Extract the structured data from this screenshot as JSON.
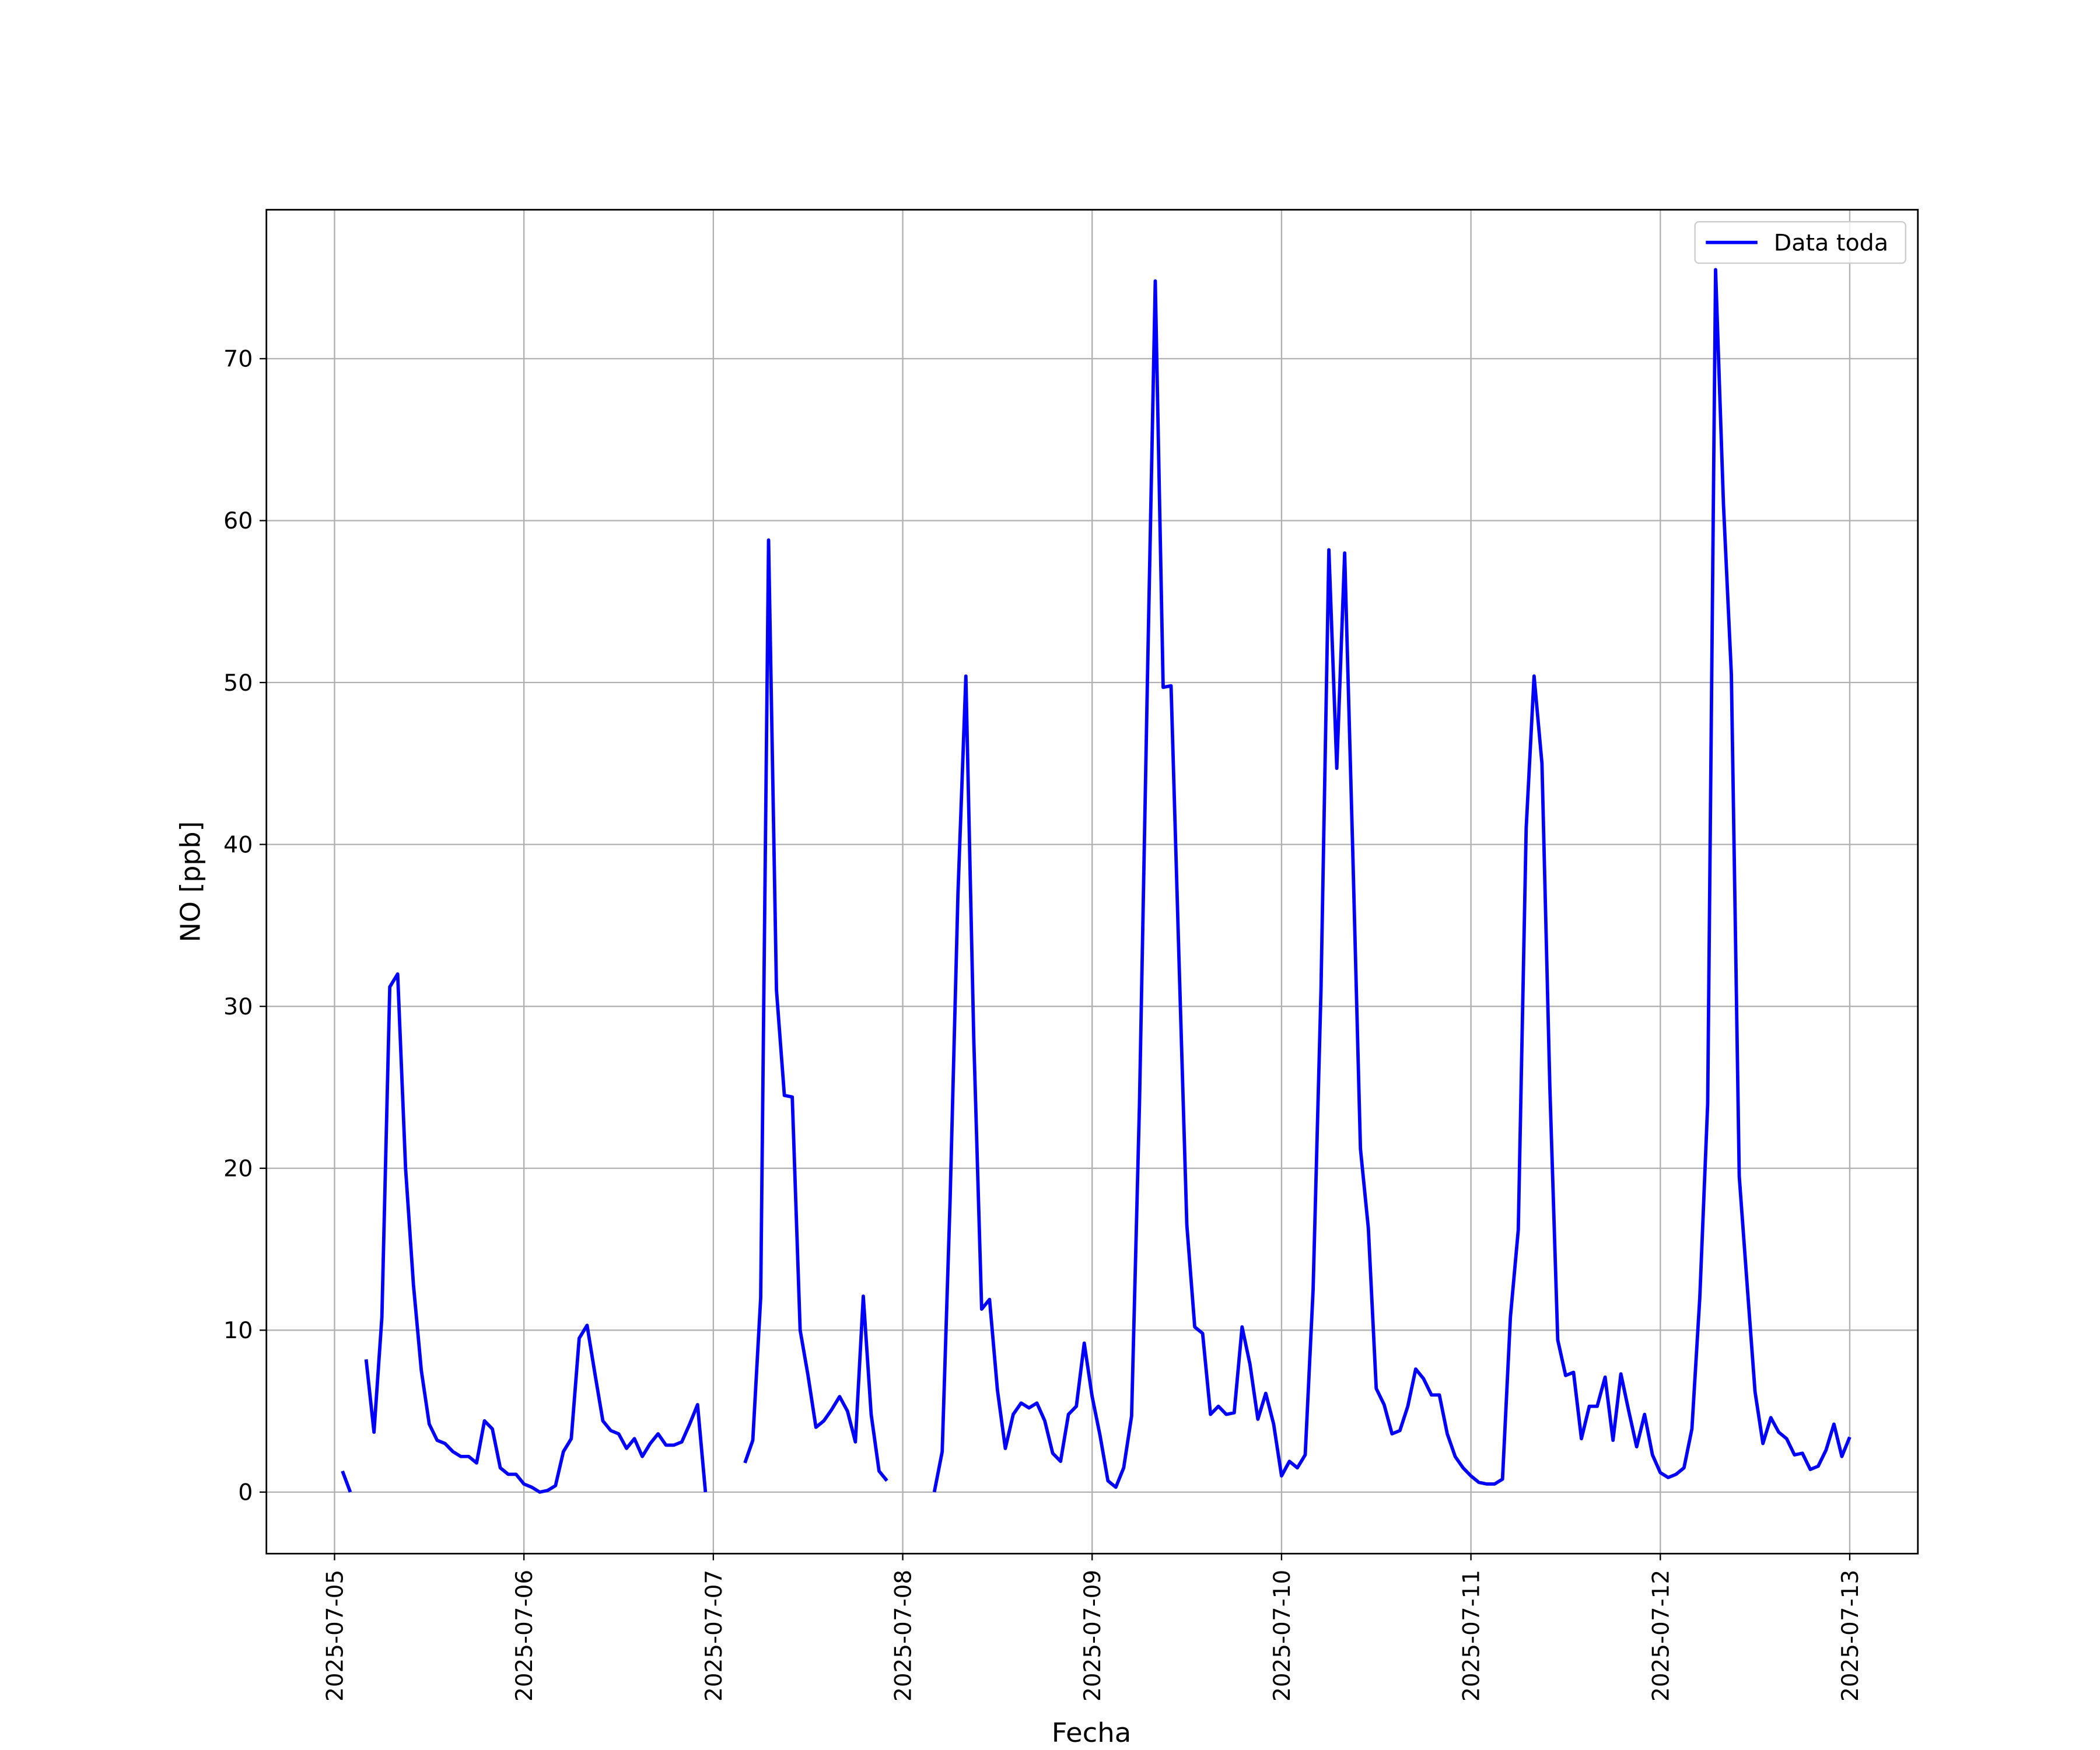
{
  "chart_data": {
    "type": "line",
    "x_label": "Fecha",
    "y_label": "NO [ppb]",
    "x": [
      "2025-07-05 00:00",
      "2025-07-05 01:00",
      "2025-07-05 02:00",
      "2025-07-05 03:00",
      "2025-07-05 04:00",
      "2025-07-05 05:00",
      "2025-07-05 06:00",
      "2025-07-05 07:00",
      "2025-07-05 08:00",
      "2025-07-05 09:00",
      "2025-07-05 10:00",
      "2025-07-05 11:00",
      "2025-07-05 12:00",
      "2025-07-05 13:00",
      "2025-07-05 14:00",
      "2025-07-05 15:00",
      "2025-07-05 16:00",
      "2025-07-05 17:00",
      "2025-07-05 18:00",
      "2025-07-05 19:00",
      "2025-07-05 20:00",
      "2025-07-05 21:00",
      "2025-07-05 22:00",
      "2025-07-05 23:00",
      "2025-07-06 00:00",
      "2025-07-06 01:00",
      "2025-07-06 02:00",
      "2025-07-06 03:00",
      "2025-07-06 04:00",
      "2025-07-06 05:00",
      "2025-07-06 06:00",
      "2025-07-06 07:00",
      "2025-07-06 08:00",
      "2025-07-06 09:00",
      "2025-07-06 10:00",
      "2025-07-06 11:00",
      "2025-07-06 12:00",
      "2025-07-06 13:00",
      "2025-07-06 14:00",
      "2025-07-06 15:00",
      "2025-07-06 16:00",
      "2025-07-06 17:00",
      "2025-07-06 18:00",
      "2025-07-06 19:00",
      "2025-07-06 20:00",
      "2025-07-06 21:00",
      "2025-07-06 22:00",
      "2025-07-06 23:00",
      "2025-07-07 00:00",
      "2025-07-07 01:00",
      "2025-07-07 02:00",
      "2025-07-07 03:00",
      "2025-07-07 04:00",
      "2025-07-07 05:00",
      "2025-07-07 06:00",
      "2025-07-07 07:00",
      "2025-07-07 08:00",
      "2025-07-07 09:00",
      "2025-07-07 10:00",
      "2025-07-07 11:00",
      "2025-07-07 12:00",
      "2025-07-07 13:00",
      "2025-07-07 14:00",
      "2025-07-07 15:00",
      "2025-07-07 16:00",
      "2025-07-07 17:00",
      "2025-07-07 18:00",
      "2025-07-07 19:00",
      "2025-07-07 20:00",
      "2025-07-07 21:00",
      "2025-07-07 22:00",
      "2025-07-07 23:00",
      "2025-07-08 00:00",
      "2025-07-08 01:00",
      "2025-07-08 02:00",
      "2025-07-08 03:00",
      "2025-07-08 04:00",
      "2025-07-08 05:00",
      "2025-07-08 06:00",
      "2025-07-08 07:00",
      "2025-07-08 08:00",
      "2025-07-08 09:00",
      "2025-07-08 10:00",
      "2025-07-08 11:00",
      "2025-07-08 12:00",
      "2025-07-08 13:00",
      "2025-07-08 14:00",
      "2025-07-08 15:00",
      "2025-07-08 16:00",
      "2025-07-08 17:00",
      "2025-07-08 18:00",
      "2025-07-08 19:00",
      "2025-07-08 20:00",
      "2025-07-08 21:00",
      "2025-07-08 22:00",
      "2025-07-08 23:00",
      "2025-07-09 00:00",
      "2025-07-09 01:00",
      "2025-07-09 02:00",
      "2025-07-09 03:00",
      "2025-07-09 04:00",
      "2025-07-09 05:00",
      "2025-07-09 06:00",
      "2025-07-09 07:00",
      "2025-07-09 08:00",
      "2025-07-09 09:00",
      "2025-07-09 10:00",
      "2025-07-09 11:00",
      "2025-07-09 12:00",
      "2025-07-09 13:00",
      "2025-07-09 14:00",
      "2025-07-09 15:00",
      "2025-07-09 16:00",
      "2025-07-09 17:00",
      "2025-07-09 18:00",
      "2025-07-09 19:00",
      "2025-07-09 20:00",
      "2025-07-09 21:00",
      "2025-07-09 22:00",
      "2025-07-09 23:00",
      "2025-07-10 00:00",
      "2025-07-10 01:00",
      "2025-07-10 02:00",
      "2025-07-10 03:00",
      "2025-07-10 04:00",
      "2025-07-10 05:00",
      "2025-07-10 06:00",
      "2025-07-10 07:00",
      "2025-07-10 08:00",
      "2025-07-10 09:00",
      "2025-07-10 10:00",
      "2025-07-10 11:00",
      "2025-07-10 12:00",
      "2025-07-10 13:00",
      "2025-07-10 14:00",
      "2025-07-10 15:00",
      "2025-07-10 16:00",
      "2025-07-10 17:00",
      "2025-07-10 18:00",
      "2025-07-10 19:00",
      "2025-07-10 20:00",
      "2025-07-10 21:00",
      "2025-07-10 22:00",
      "2025-07-10 23:00",
      "2025-07-11 00:00",
      "2025-07-11 01:00",
      "2025-07-11 02:00",
      "2025-07-11 03:00",
      "2025-07-11 04:00",
      "2025-07-11 05:00",
      "2025-07-11 06:00",
      "2025-07-11 07:00",
      "2025-07-11 08:00",
      "2025-07-11 09:00",
      "2025-07-11 10:00",
      "2025-07-11 11:00",
      "2025-07-11 12:00",
      "2025-07-11 13:00",
      "2025-07-11 14:00",
      "2025-07-11 15:00",
      "2025-07-11 16:00",
      "2025-07-11 17:00",
      "2025-07-11 18:00",
      "2025-07-11 19:00",
      "2025-07-11 20:00",
      "2025-07-11 21:00",
      "2025-07-11 22:00",
      "2025-07-11 23:00",
      "2025-07-12 00:00",
      "2025-07-12 01:00",
      "2025-07-12 02:00",
      "2025-07-12 03:00",
      "2025-07-12 04:00",
      "2025-07-12 05:00",
      "2025-07-12 06:00",
      "2025-07-12 07:00",
      "2025-07-12 08:00",
      "2025-07-12 09:00",
      "2025-07-12 10:00",
      "2025-07-12 11:00",
      "2025-07-12 12:00",
      "2025-07-12 13:00",
      "2025-07-12 14:00",
      "2025-07-12 15:00",
      "2025-07-12 16:00",
      "2025-07-12 17:00",
      "2025-07-12 18:00",
      "2025-07-12 19:00",
      "2025-07-12 20:00",
      "2025-07-12 21:00",
      "2025-07-12 22:00",
      "2025-07-12 23:00",
      "2025-07-13 00:00"
    ],
    "series": [
      {
        "name": "Data toda",
        "color": "#0000ff",
        "values": [
          null,
          1.3,
          0,
          null,
          8.2,
          3.7,
          10.8,
          31.2,
          32.0,
          20,
          12.8,
          7.5,
          4.2,
          3.2,
          3.0,
          2.5,
          2.2,
          2.2,
          1.8,
          4.4,
          3.9,
          1.5,
          1.1,
          1.1,
          0.5,
          0.3,
          0,
          0.1,
          0.4,
          2.5,
          3.3,
          9.5,
          10.3,
          7.3,
          4.4,
          3.8,
          3.6,
          2.7,
          3.3,
          2.2,
          3.0,
          3.6,
          2.9,
          2.9,
          3.1,
          4.2,
          5.4,
          0,
          null,
          null,
          null,
          null,
          1.8,
          3.2,
          12,
          58.8,
          31,
          24.5,
          24.4,
          10,
          7.2,
          4.0,
          4.4,
          5.1,
          5.9,
          5.0,
          3.1,
          12.1,
          4.8,
          1.3,
          0.7,
          null,
          null,
          null,
          null,
          null,
          0,
          2.5,
          18,
          37,
          50.4,
          28,
          11.3,
          11.9,
          6.3,
          2.7,
          4.8,
          5.5,
          5.2,
          5.5,
          4.4,
          2.4,
          1.9,
          4.8,
          5.3,
          9.2,
          5.9,
          3.5,
          0.7,
          0.3,
          1.5,
          4.7,
          24,
          50,
          74.8,
          49.7,
          49.8,
          33,
          16.5,
          10.2,
          9.8,
          4.8,
          5.3,
          4.8,
          4.9,
          10.2,
          7.9,
          4.5,
          6.1,
          4.2,
          1.0,
          1.9,
          1.5,
          2.3,
          12.5,
          31,
          58.2,
          44.7,
          58,
          40,
          21.2,
          16.3,
          6.4,
          5.4,
          3.6,
          3.8,
          5.3,
          7.6,
          7.0,
          6.0,
          6.0,
          3.6,
          2.2,
          1.5,
          1.0,
          0.6,
          0.5,
          0.5,
          0.8,
          10.8,
          16.2,
          41,
          50.4,
          45,
          25,
          9.4,
          7.2,
          7.4,
          3.3,
          5.3,
          5.3,
          7.1,
          3.2,
          7.3,
          5.0,
          2.8,
          4.8,
          2.3,
          1.2,
          0.9,
          1.1,
          1.5,
          3.9,
          12,
          24,
          75.5,
          61,
          50.5,
          19.5,
          12.8,
          6.2,
          3.0,
          4.6,
          3.7,
          3.3,
          2.3,
          2.4,
          1.4,
          1.6,
          2.6,
          4.2,
          2.2,
          3.4
        ]
      }
    ],
    "xlim": [
      "2025-07-04 15:22",
      "2025-07-13 08:38"
    ],
    "xticks": [
      "2025-07-05",
      "2025-07-06",
      "2025-07-07",
      "2025-07-08",
      "2025-07-09",
      "2025-07-10",
      "2025-07-11",
      "2025-07-12",
      "2025-07-13"
    ],
    "ylim": [
      -3.8,
      79.2
    ],
    "yticks": [
      0,
      10,
      20,
      30,
      40,
      50,
      60,
      70
    ],
    "grid": true,
    "legend": "upper right"
  }
}
